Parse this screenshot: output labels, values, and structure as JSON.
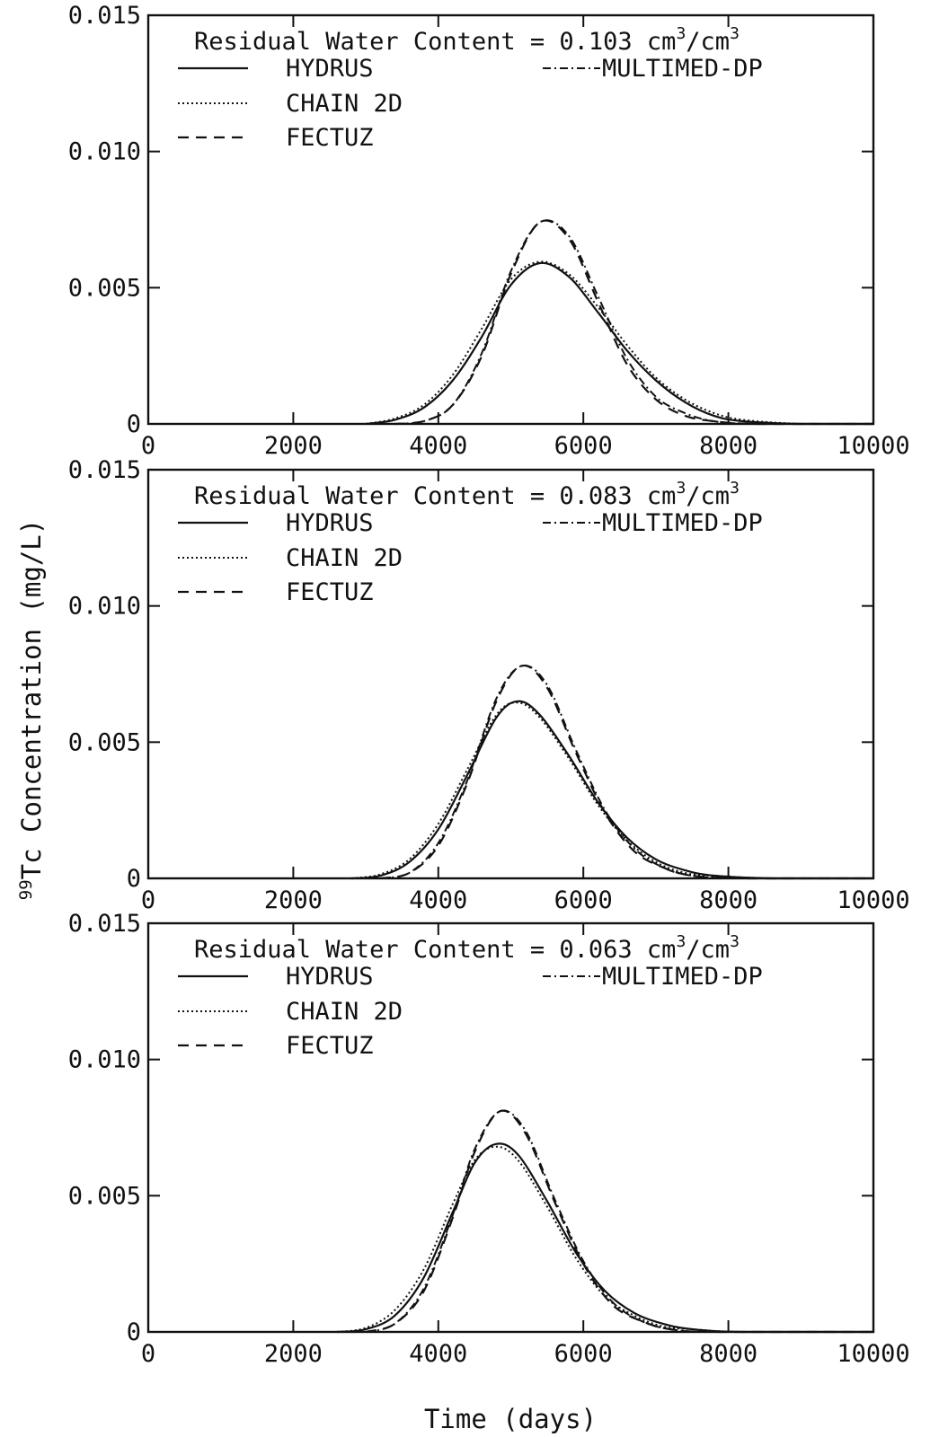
{
  "chart_data": {
    "type": "line",
    "xlabel": "Time (days)",
    "ylabel": {
      "prefix": "99",
      "text": "Tc Concentration (mg/L)"
    },
    "xlim": [
      0,
      10000
    ],
    "ylim": [
      0,
      0.015
    ],
    "x_ticks": [
      0,
      2000,
      4000,
      6000,
      8000,
      10000
    ],
    "x_tick_labels": [
      "0",
      "2000",
      "4000",
      "6000",
      "8000",
      "10000"
    ],
    "y_ticks": [
      0,
      0.005,
      0.01,
      0.015
    ],
    "y_tick_labels": [
      "0",
      "0.005",
      "0.010",
      "0.015"
    ],
    "grid": false,
    "legend_placement": "top-left",
    "legend": [
      {
        "name": "HYDRUS",
        "style": "solid"
      },
      {
        "name": "MULTIMED-DP",
        "style": "dashdot"
      },
      {
        "name": "CHAIN 2D",
        "style": "dotted"
      },
      {
        "name": "FECTUZ",
        "style": "dashed"
      }
    ],
    "panels": [
      {
        "annotation": {
          "text": "Residual Water Content = 0.103 cm",
          "sup1": "3",
          "mid": "/cm",
          "sup2": "3"
        },
        "series": [
          {
            "name": "HYDRUS",
            "style": "solid",
            "points": [
              [
                3000,
                0
              ],
              [
                3400,
                0.00015
              ],
              [
                3800,
                0.0006
              ],
              [
                4200,
                0.0016
              ],
              [
                4600,
                0.0032
              ],
              [
                5000,
                0.0051
              ],
              [
                5400,
                0.0059
              ],
              [
                5800,
                0.0054
              ],
              [
                6200,
                0.0041
              ],
              [
                6600,
                0.0027
              ],
              [
                7000,
                0.0016
              ],
              [
                7400,
                0.0008
              ],
              [
                7800,
                0.0003
              ],
              [
                8200,
                0.0001
              ],
              [
                9000,
                0
              ],
              [
                10000,
                0
              ]
            ]
          },
          {
            "name": "CHAIN 2D",
            "style": "dotted",
            "points": [
              [
                3000,
                0
              ],
              [
                3400,
                0.0002
              ],
              [
                3800,
                0.0007
              ],
              [
                4200,
                0.0018
              ],
              [
                4600,
                0.0035
              ],
              [
                5000,
                0.0053
              ],
              [
                5400,
                0.00595
              ],
              [
                5800,
                0.0055
              ],
              [
                6200,
                0.0043
              ],
              [
                6600,
                0.0029
              ],
              [
                7000,
                0.0017
              ],
              [
                7400,
                0.0009
              ],
              [
                7800,
                0.0004
              ],
              [
                8200,
                0.00015
              ],
              [
                9000,
                0
              ],
              [
                10000,
                0
              ]
            ]
          },
          {
            "name": "FECTUZ",
            "style": "dashed",
            "points": [
              [
                3400,
                0
              ],
              [
                3800,
                0.0001
              ],
              [
                4200,
                0.0007
              ],
              [
                4600,
                0.0025
              ],
              [
                5000,
                0.0055
              ],
              [
                5400,
                0.0074
              ],
              [
                5800,
                0.0068
              ],
              [
                6200,
                0.0045
              ],
              [
                6600,
                0.0022
              ],
              [
                7000,
                0.0009
              ],
              [
                7400,
                0.0003
              ],
              [
                7800,
                0.0001
              ],
              [
                8400,
                0
              ],
              [
                10000,
                0
              ]
            ]
          },
          {
            "name": "MULTIMED-DP",
            "style": "dashdot",
            "points": [
              [
                3400,
                0
              ],
              [
                3800,
                0.0001
              ],
              [
                4200,
                0.0007
              ],
              [
                4600,
                0.0026
              ],
              [
                5000,
                0.0056
              ],
              [
                5400,
                0.0074
              ],
              [
                5800,
                0.0069
              ],
              [
                6200,
                0.0047
              ],
              [
                6600,
                0.0024
              ],
              [
                7000,
                0.001
              ],
              [
                7400,
                0.0004
              ],
              [
                7800,
                0.0001
              ],
              [
                8400,
                0
              ],
              [
                10000,
                0
              ]
            ]
          }
        ]
      },
      {
        "annotation": {
          "text": "Residual Water Content = 0.083 cm",
          "sup1": "3",
          "mid": "/cm",
          "sup2": "3"
        },
        "series": [
          {
            "name": "HYDRUS",
            "style": "solid",
            "points": [
              [
                2800,
                0
              ],
              [
                3200,
                0.0001
              ],
              [
                3600,
                0.0006
              ],
              [
                4000,
                0.0018
              ],
              [
                4400,
                0.0038
              ],
              [
                4800,
                0.0059
              ],
              [
                5100,
                0.0065
              ],
              [
                5400,
                0.006
              ],
              [
                5800,
                0.0045
              ],
              [
                6200,
                0.0028
              ],
              [
                6600,
                0.0015
              ],
              [
                7000,
                0.0007
              ],
              [
                7400,
                0.0003
              ],
              [
                7800,
                0.0001
              ],
              [
                8600,
                0
              ],
              [
                10000,
                0
              ]
            ]
          },
          {
            "name": "CHAIN 2D",
            "style": "dotted",
            "points": [
              [
                2800,
                0
              ],
              [
                3200,
                0.00015
              ],
              [
                3600,
                0.0007
              ],
              [
                4000,
                0.002
              ],
              [
                4400,
                0.004
              ],
              [
                4800,
                0.006
              ],
              [
                5100,
                0.00645
              ],
              [
                5400,
                0.0059
              ],
              [
                5800,
                0.0044
              ],
              [
                6200,
                0.0027
              ],
              [
                6600,
                0.0014
              ],
              [
                7000,
                0.0006
              ],
              [
                7400,
                0.0002
              ],
              [
                7800,
                0.0001
              ],
              [
                8600,
                0
              ],
              [
                10000,
                0
              ]
            ]
          },
          {
            "name": "FECTUZ",
            "style": "dashed",
            "points": [
              [
                3200,
                0
              ],
              [
                3600,
                0.0002
              ],
              [
                4000,
                0.0012
              ],
              [
                4400,
                0.0035
              ],
              [
                4800,
                0.0065
              ],
              [
                5150,
                0.0078
              ],
              [
                5500,
                0.007
              ],
              [
                5900,
                0.0046
              ],
              [
                6300,
                0.0024
              ],
              [
                6700,
                0.001
              ],
              [
                7100,
                0.0004
              ],
              [
                7500,
                0.0001
              ],
              [
                8200,
                0
              ],
              [
                10000,
                0
              ]
            ]
          },
          {
            "name": "MULTIMED-DP",
            "style": "dashdot",
            "points": [
              [
                3200,
                0
              ],
              [
                3600,
                0.0002
              ],
              [
                4000,
                0.0013
              ],
              [
                4400,
                0.0036
              ],
              [
                4800,
                0.0066
              ],
              [
                5150,
                0.0078
              ],
              [
                5500,
                0.0071
              ],
              [
                5900,
                0.0047
              ],
              [
                6300,
                0.0025
              ],
              [
                6700,
                0.0011
              ],
              [
                7100,
                0.0004
              ],
              [
                7500,
                0.0001
              ],
              [
                8200,
                0
              ],
              [
                10000,
                0
              ]
            ]
          }
        ]
      },
      {
        "annotation": {
          "text": "Residual Water Content = 0.063 cm",
          "sup1": "3",
          "mid": "/cm",
          "sup2": "3"
        },
        "series": [
          {
            "name": "HYDRUS",
            "style": "solid",
            "points": [
              [
                2600,
                0
              ],
              [
                3000,
                0.0001
              ],
              [
                3400,
                0.0006
              ],
              [
                3800,
                0.002
              ],
              [
                4200,
                0.0044
              ],
              [
                4500,
                0.0062
              ],
              [
                4800,
                0.0069
              ],
              [
                5100,
                0.0065
              ],
              [
                5500,
                0.0048
              ],
              [
                5900,
                0.0029
              ],
              [
                6300,
                0.0015
              ],
              [
                6700,
                0.0007
              ],
              [
                7100,
                0.0003
              ],
              [
                7500,
                0.0001
              ],
              [
                8200,
                0
              ],
              [
                10000,
                0
              ]
            ]
          },
          {
            "name": "CHAIN 2D",
            "style": "dotted",
            "points": [
              [
                2600,
                0
              ],
              [
                3000,
                0.00015
              ],
              [
                3400,
                0.0008
              ],
              [
                3800,
                0.0023
              ],
              [
                4200,
                0.0047
              ],
              [
                4500,
                0.0063
              ],
              [
                4800,
                0.0068
              ],
              [
                5100,
                0.0063
              ],
              [
                5500,
                0.0046
              ],
              [
                5900,
                0.0027
              ],
              [
                6300,
                0.0013
              ],
              [
                6700,
                0.0006
              ],
              [
                7100,
                0.0002
              ],
              [
                7500,
                0.0001
              ],
              [
                8200,
                0
              ],
              [
                10000,
                0
              ]
            ]
          },
          {
            "name": "FECTUZ",
            "style": "dashed",
            "points": [
              [
                3000,
                0
              ],
              [
                3400,
                0.0003
              ],
              [
                3800,
                0.0015
              ],
              [
                4200,
                0.0042
              ],
              [
                4500,
                0.0066
              ],
              [
                4850,
                0.0081
              ],
              [
                5200,
                0.0073
              ],
              [
                5600,
                0.0048
              ],
              [
                6000,
                0.0025
              ],
              [
                6400,
                0.001
              ],
              [
                6800,
                0.0004
              ],
              [
                7200,
                0.0001
              ],
              [
                7800,
                0
              ],
              [
                10000,
                0
              ]
            ]
          },
          {
            "name": "MULTIMED-DP",
            "style": "dashdot",
            "points": [
              [
                3000,
                0
              ],
              [
                3400,
                0.0003
              ],
              [
                3800,
                0.0016
              ],
              [
                4200,
                0.0043
              ],
              [
                4500,
                0.0067
              ],
              [
                4850,
                0.0081
              ],
              [
                5200,
                0.0074
              ],
              [
                5600,
                0.0049
              ],
              [
                6000,
                0.0026
              ],
              [
                6400,
                0.0011
              ],
              [
                6800,
                0.0004
              ],
              [
                7200,
                0.0001
              ],
              [
                7800,
                0
              ],
              [
                10000,
                0
              ]
            ]
          }
        ]
      }
    ]
  }
}
